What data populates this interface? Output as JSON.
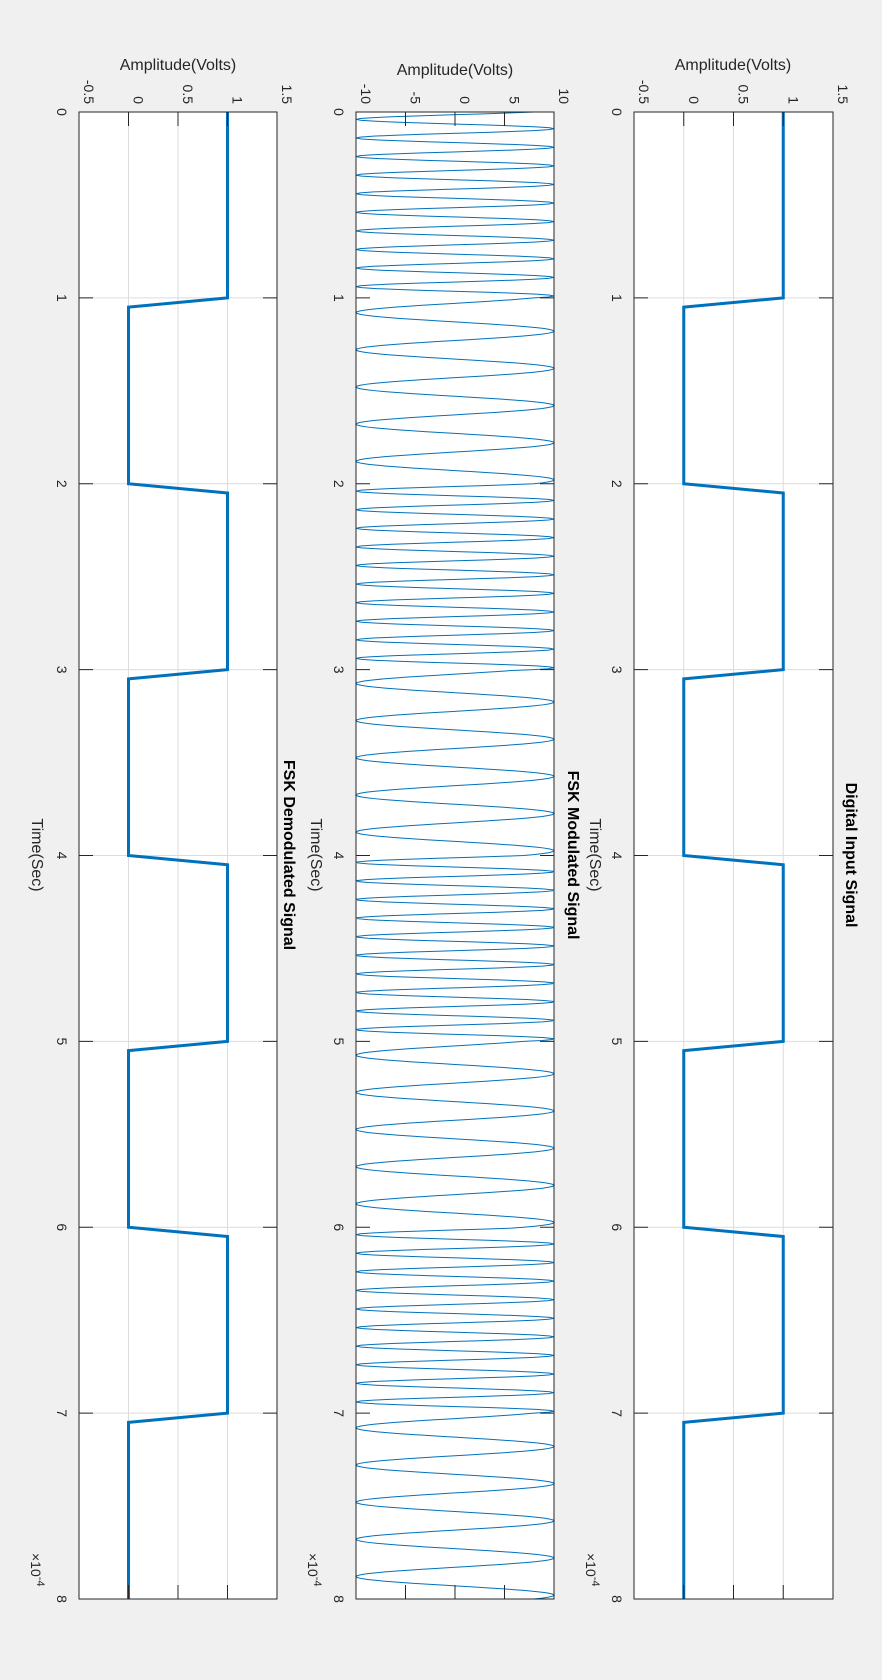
{
  "figure": {
    "background": "#f0f0f0",
    "rotation_deg": 90,
    "line_color": "#0072bd",
    "grid_color": "#dcdcdc",
    "axes_color": "#262626"
  },
  "chart_data": [
    {
      "type": "line",
      "title": "Digital Input Signal",
      "xlabel": "Time(Sec)",
      "ylabel": "Amplitude(Volts)",
      "xlim": [
        0,
        0.0008
      ],
      "ylim": [
        -0.5,
        1.5
      ],
      "x_exponent_label": "×10",
      "x_exponent": "-4",
      "xticks": [
        0,
        1,
        2,
        3,
        4,
        5,
        6,
        7,
        8
      ],
      "xtick_labels": [
        "0",
        "1",
        "2",
        "3",
        "4",
        "5",
        "6",
        "7",
        "8"
      ],
      "yticks": [
        -0.5,
        0,
        0.5,
        1,
        1.5
      ],
      "ytick_labels": [
        "-0.5",
        "0",
        "0.5",
        "1",
        "1.5"
      ],
      "grid": true,
      "line_width": 3,
      "bits": [
        1,
        0,
        1,
        0,
        1,
        0,
        1,
        0
      ],
      "bit_period_s": 0.0001,
      "series": [
        {
          "name": "input",
          "kind": "bits"
        }
      ]
    },
    {
      "type": "line",
      "title": "FSK Modulated Signal",
      "xlabel": "Time(Sec)",
      "ylabel": "Amplitude(Volts)",
      "xlim": [
        0,
        0.0008
      ],
      "ylim": [
        -10,
        10
      ],
      "x_exponent_label": "×10",
      "x_exponent": "-4",
      "xticks": [
        0,
        1,
        2,
        3,
        4,
        5,
        6,
        7,
        8
      ],
      "xtick_labels": [
        "0",
        "1",
        "2",
        "3",
        "4",
        "5",
        "6",
        "7",
        "8"
      ],
      "yticks": [
        -10,
        -5,
        0,
        5,
        10
      ],
      "ytick_labels": [
        "-10",
        "-5",
        "0",
        "5",
        "10"
      ],
      "grid": false,
      "line_width": 1,
      "amplitude": 10,
      "freq_bit1_hz": 100000,
      "freq_bit0_hz": 50000,
      "bits": [
        1,
        0,
        1,
        0,
        1,
        0,
        1,
        0
      ],
      "bit_period_s": 0.0001,
      "series": [
        {
          "name": "fsk",
          "kind": "fsk"
        }
      ]
    },
    {
      "type": "line",
      "title": "FSK Demodulated Signal",
      "xlabel": "Time(Sec)",
      "ylabel": "Amplitude(Volts)",
      "xlim": [
        0,
        0.0008
      ],
      "ylim": [
        -0.5,
        1.5
      ],
      "x_exponent_label": "×10",
      "x_exponent": "-4",
      "xticks": [
        0,
        1,
        2,
        3,
        4,
        5,
        6,
        7,
        8
      ],
      "xtick_labels": [
        "0",
        "1",
        "2",
        "3",
        "4",
        "5",
        "6",
        "7",
        "8"
      ],
      "yticks": [
        -0.5,
        0,
        0.5,
        1,
        1.5
      ],
      "ytick_labels": [
        "-0.5",
        "0",
        "0.5",
        "1",
        "1.5"
      ],
      "grid": true,
      "line_width": 3,
      "bits": [
        1,
        0,
        1,
        0,
        1,
        0,
        1,
        0
      ],
      "bit_period_s": 0.0001,
      "series": [
        {
          "name": "demod",
          "kind": "bits"
        }
      ]
    }
  ]
}
